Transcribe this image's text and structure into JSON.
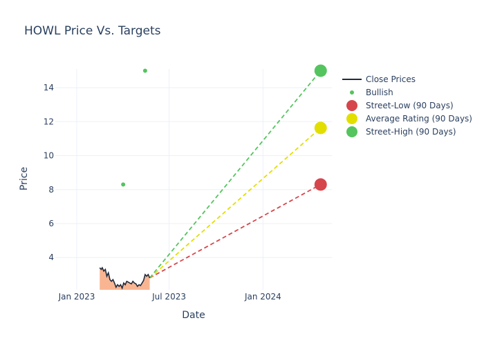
{
  "chart_data": {
    "type": "line",
    "title": "HOWL Price Vs. Targets",
    "xlabel": "Date",
    "ylabel": "Price",
    "x_range": [
      "2022-11-20",
      "2024-05-15"
    ],
    "y_range": [
      2.1,
      15.1
    ],
    "x_ticks": [
      {
        "date": "2023-01-01",
        "label": "Jan 2023"
      },
      {
        "date": "2023-07-01",
        "label": "Jul 2023"
      },
      {
        "date": "2024-01-01",
        "label": "Jan 2024"
      }
    ],
    "y_ticks": [
      4,
      6,
      8,
      10,
      12,
      14
    ],
    "legend": {
      "position": "top-right",
      "items": [
        {
          "key": "close",
          "label": "Close Prices",
          "symbol": "line",
          "color": "#1f2a3a"
        },
        {
          "key": "bullish",
          "label": "Bullish",
          "symbol": "dot-small",
          "color": "#54c45e"
        },
        {
          "key": "low",
          "label": "Street-Low (90 Days)",
          "symbol": "dot-large",
          "color": "#d6454b"
        },
        {
          "key": "avg",
          "label": "Average Rating (90 Days)",
          "symbol": "dot-large",
          "color": "#e2df00"
        },
        {
          "key": "high",
          "label": "Street-High (90 Days)",
          "symbol": "dot-large",
          "color": "#54c45e"
        }
      ]
    },
    "close_prices": {
      "color": "#1f2a3a",
      "fill_color": "#f9b592",
      "points": [
        [
          "2023-02-15",
          3.4
        ],
        [
          "2023-02-18",
          3.3
        ],
        [
          "2023-02-20",
          3.4
        ],
        [
          "2023-02-23",
          3.2
        ],
        [
          "2023-02-26",
          3.3
        ],
        [
          "2023-03-01",
          2.9
        ],
        [
          "2023-03-04",
          3.1
        ],
        [
          "2023-03-07",
          2.7
        ],
        [
          "2023-03-10",
          2.6
        ],
        [
          "2023-03-13",
          2.7
        ],
        [
          "2023-03-16",
          2.5
        ],
        [
          "2023-03-19",
          2.25
        ],
        [
          "2023-03-22",
          2.4
        ],
        [
          "2023-03-25",
          2.3
        ],
        [
          "2023-03-28",
          2.4
        ],
        [
          "2023-03-31",
          2.2
        ],
        [
          "2023-04-03",
          2.5
        ],
        [
          "2023-04-06",
          2.4
        ],
        [
          "2023-04-09",
          2.6
        ],
        [
          "2023-04-12",
          2.55
        ],
        [
          "2023-04-15",
          2.5
        ],
        [
          "2023-04-18",
          2.45
        ],
        [
          "2023-04-21",
          2.6
        ],
        [
          "2023-04-24",
          2.5
        ],
        [
          "2023-04-27",
          2.45
        ],
        [
          "2023-04-30",
          2.3
        ],
        [
          "2023-05-03",
          2.4
        ],
        [
          "2023-05-06",
          2.35
        ],
        [
          "2023-05-09",
          2.5
        ],
        [
          "2023-05-12",
          2.65
        ],
        [
          "2023-05-15",
          3.0
        ],
        [
          "2023-05-18",
          2.9
        ],
        [
          "2023-05-21",
          3.0
        ],
        [
          "2023-05-24",
          2.8
        ]
      ]
    },
    "bullish_points": [
      {
        "date": "2023-04-02",
        "value": 8.3
      },
      {
        "date": "2023-05-15",
        "value": 15.0
      }
    ],
    "targets": {
      "start": {
        "date": "2023-05-24",
        "value": 2.8
      },
      "end_date": "2024-04-23",
      "low": 8.3,
      "average": 11.63,
      "high": 15.0
    }
  }
}
